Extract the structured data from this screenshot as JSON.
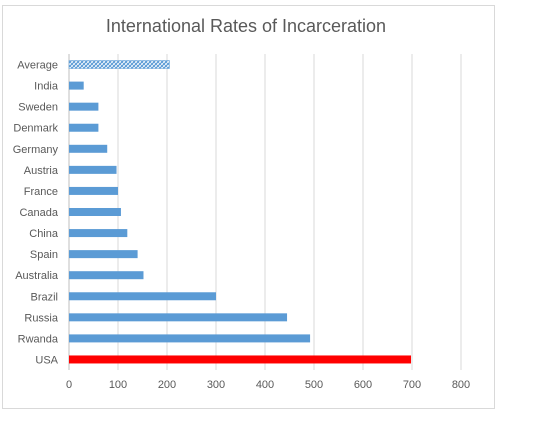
{
  "chart_data": {
    "type": "bar",
    "orientation": "horizontal",
    "title": "International Rates of Incarceration",
    "xlabel": "",
    "ylabel": "",
    "categories": [
      "Average",
      "India",
      "Sweden",
      "Denmark",
      "Germany",
      "Austria",
      "France",
      "Canada",
      "China",
      "Spain",
      "Australia",
      "Brazil",
      "Russia",
      "Rwanda",
      "USA"
    ],
    "values": [
      205,
      30,
      60,
      60,
      78,
      97,
      100,
      106,
      119,
      140,
      152,
      300,
      445,
      492,
      698
    ],
    "xlim": [
      0,
      800
    ],
    "x_ticks": [
      "0",
      "100",
      "200",
      "300",
      "400",
      "500",
      "600",
      "700",
      "800"
    ],
    "grid": "vertical",
    "legend": "none",
    "colors": {
      "default": "#5b9bd5",
      "Average": "hatched #5b9bd5",
      "USA": "#ff0000"
    }
  }
}
